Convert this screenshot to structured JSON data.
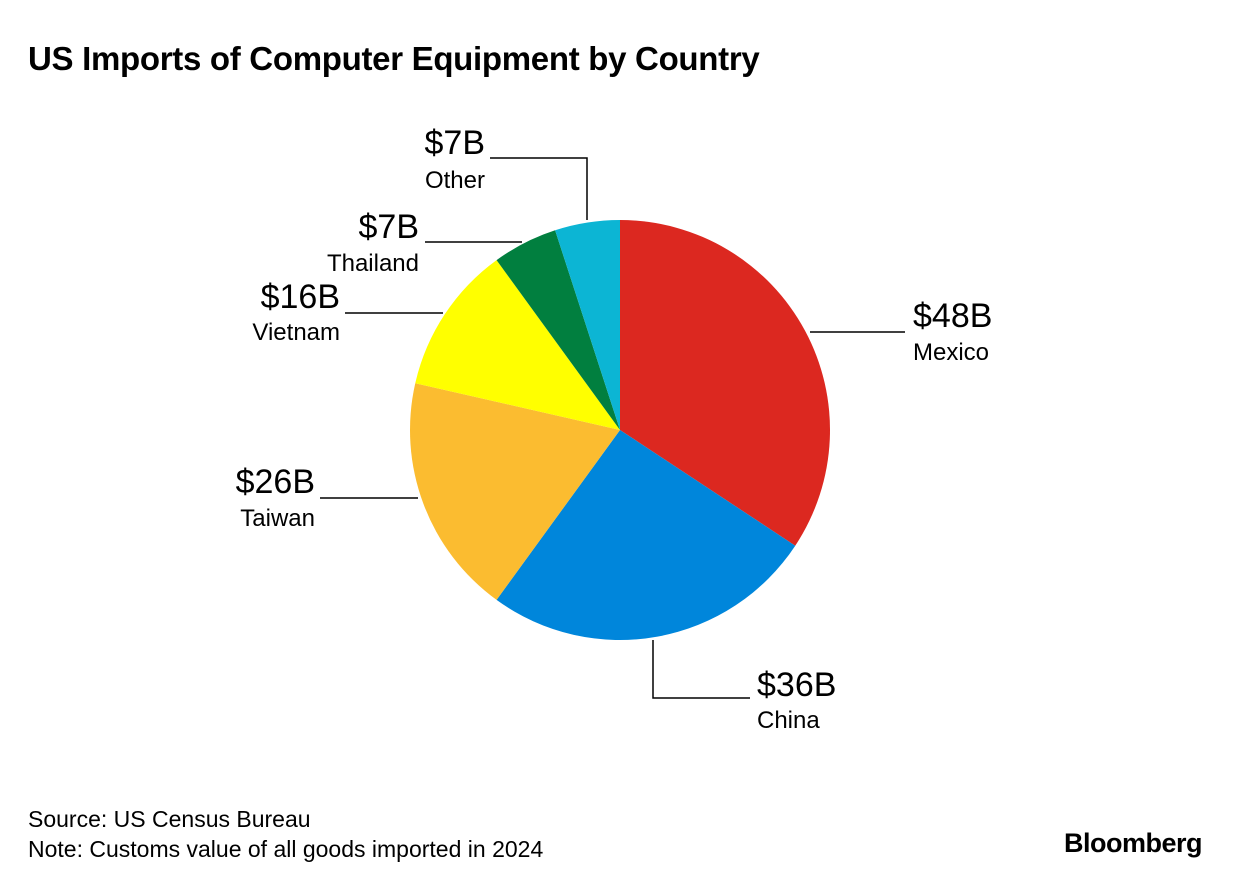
{
  "title": "US Imports of Computer Equipment by Country",
  "source": "Source: US Census Bureau",
  "note": "Note: Customs value of all goods imported in 2024",
  "logo": "Bloomberg",
  "chart_data": {
    "type": "pie",
    "title": "US Imports of Computer Equipment by Country",
    "unit": "USD billions",
    "start": "12 o'clock, clockwise",
    "slices": [
      {
        "category": "Mexico",
        "value": 48,
        "label": "$48B",
        "color": "#dc2820"
      },
      {
        "category": "China",
        "value": 36,
        "label": "$36B",
        "color": "#0086db"
      },
      {
        "category": "Taiwan",
        "value": 26,
        "label": "$26B",
        "color": "#fbbc30"
      },
      {
        "category": "Vietnam",
        "value": 16,
        "label": "$16B",
        "color": "#ffff00"
      },
      {
        "category": "Thailand",
        "value": 7,
        "label": "$7B",
        "color": "#017f3f"
      },
      {
        "category": "Other",
        "value": 7,
        "label": "$7B",
        "color": "#0cb5d4"
      }
    ]
  }
}
